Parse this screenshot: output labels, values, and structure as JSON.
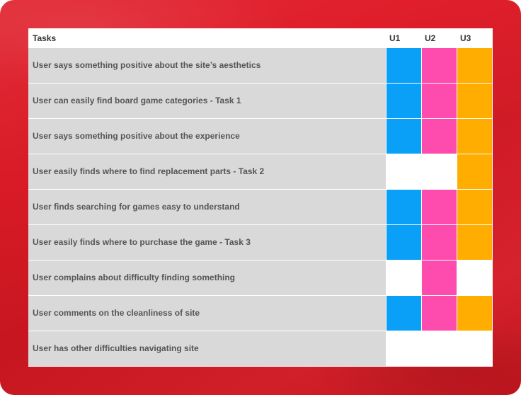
{
  "colors": {
    "background": "#d81b25",
    "u1": "#0aa0f8",
    "u2": "#fd4cae",
    "u3": "#ffad00",
    "row_label_bg": "#d9d9d9",
    "empty": "#ffffff"
  },
  "header": {
    "tasks": "Tasks",
    "u1": "U1",
    "u2": "U2",
    "u3": "U3"
  },
  "rows": [
    {
      "task": "User says something positive about the site’s aesthetics",
      "u1": true,
      "u2": true,
      "u3": true
    },
    {
      "task": "User can easily find board game categories - Task 1",
      "u1": true,
      "u2": true,
      "u3": true
    },
    {
      "task": "User says something positive about the experience",
      "u1": true,
      "u2": true,
      "u3": true
    },
    {
      "task": "User easily finds where to find replacement parts - Task 2",
      "u1": false,
      "u2": false,
      "u3": true
    },
    {
      "task": "User finds searching for games easy to understand",
      "u1": true,
      "u2": true,
      "u3": true
    },
    {
      "task": "User easily finds where to purchase the game - Task 3",
      "u1": true,
      "u2": true,
      "u3": true
    },
    {
      "task": "User complains about difficulty finding something",
      "u1": false,
      "u2": true,
      "u3": false
    },
    {
      "task": "User comments on the cleanliness of site",
      "u1": true,
      "u2": true,
      "u3": true
    },
    {
      "task": "User has other difficulties navigating site",
      "u1": false,
      "u2": false,
      "u3": false
    }
  ]
}
